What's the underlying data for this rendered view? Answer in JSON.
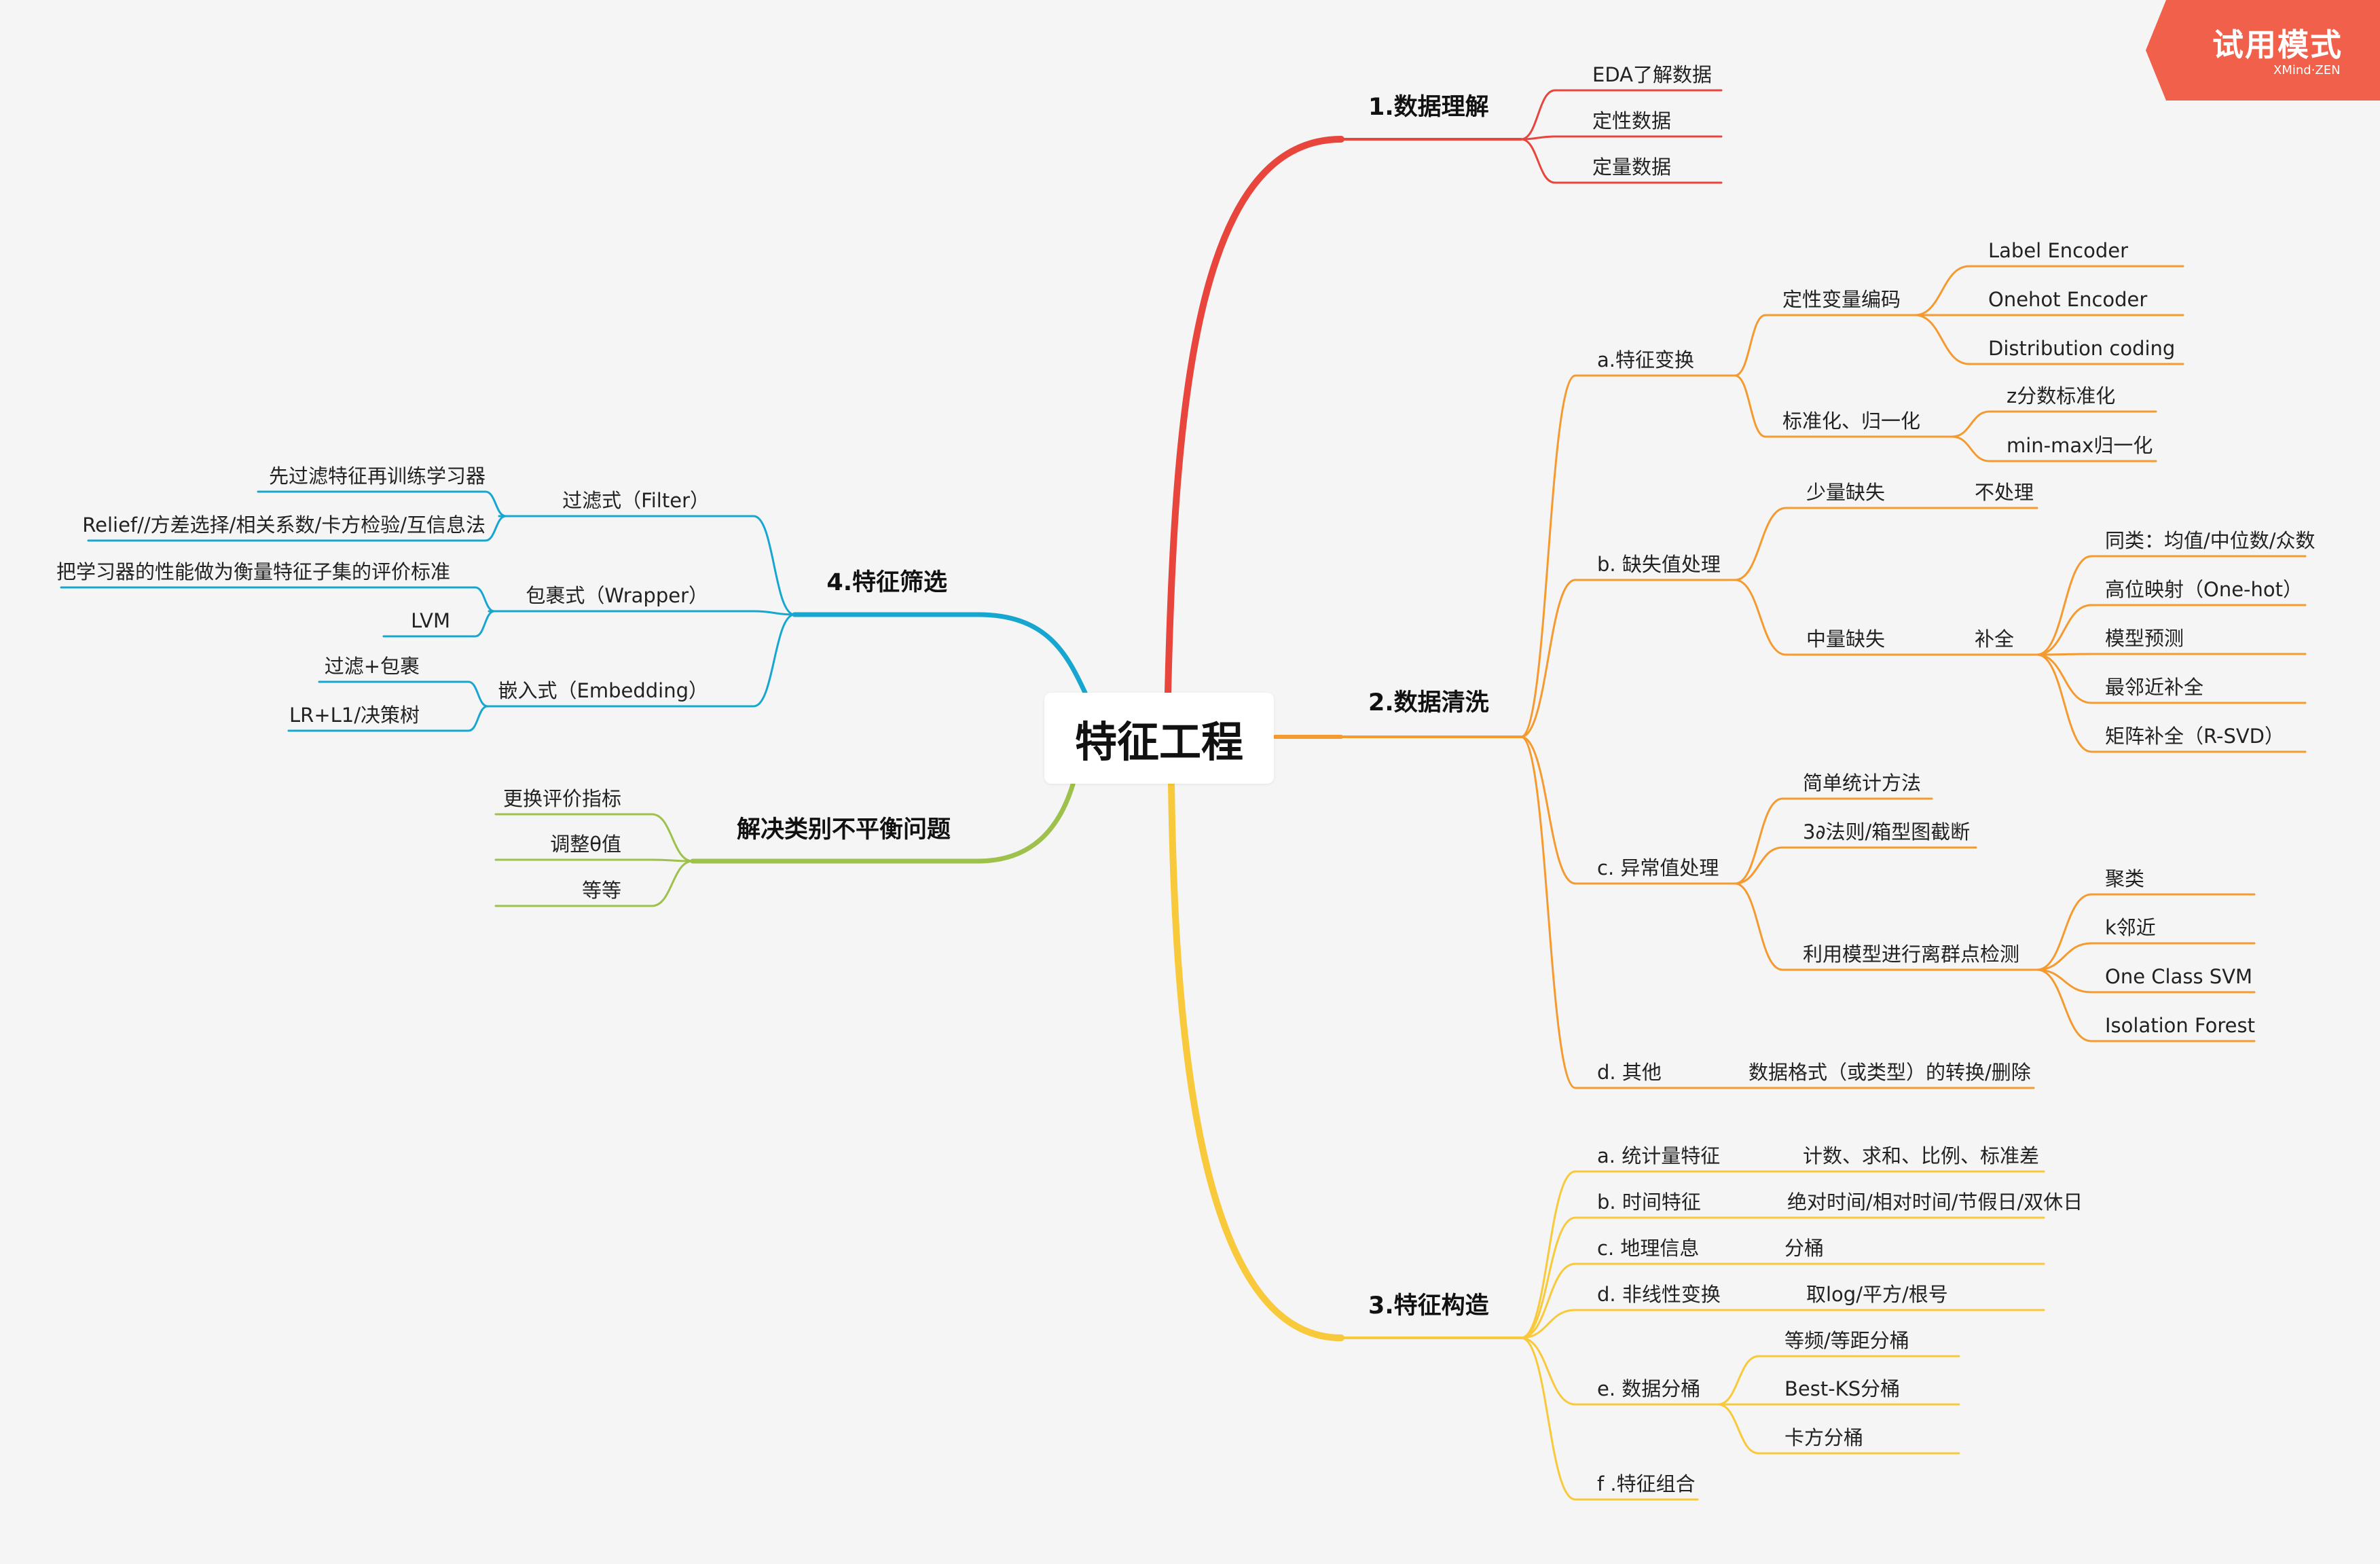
{
  "trial": {
    "label": "试用模式",
    "brand": "XMind·ZEN",
    "color": "#f0604a"
  },
  "colors": {
    "red": "#e8453c",
    "orange": "#f59a2f",
    "yellow": "#f8c93a",
    "green": "#9dc14b",
    "blue": "#17a6cf"
  },
  "root": "特征工程",
  "branches": [
    {
      "label": "1.数据理解",
      "children": [
        "EDA了解数据",
        "定性数据",
        "定量数据"
      ]
    },
    {
      "label": "2.数据清洗",
      "a": {
        "label": "a.特征变换",
        "g1": {
          "label": "定性变量编码",
          "items": [
            "Label Encoder",
            "Onehot Encoder",
            "Distribution coding"
          ]
        },
        "g2": {
          "label": "标准化、归一化",
          "items": [
            "z分数标准化",
            "min-max归一化"
          ]
        }
      },
      "b": {
        "label": "b. 缺失值处理",
        "g1": {
          "label": "少量缺失",
          "action": "不处理"
        },
        "g2": {
          "label": "中量缺失",
          "action": "补全",
          "items": [
            "同类：均值/中位数/众数",
            "高位映射（One-hot）",
            "模型预测",
            "最邻近补全",
            "矩阵补全（R-SVD）"
          ]
        }
      },
      "c": {
        "label": "c. 异常值处理",
        "items": [
          "简单统计方法",
          "3∂法则/箱型图截断"
        ],
        "g": {
          "label": "利用模型进行离群点检测",
          "items": [
            "聚类",
            "k邻近",
            "One Class SVM",
            "Isolation Forest"
          ]
        }
      },
      "d": {
        "label": "d. 其他",
        "value": "数据格式（或类型）的转换/删除"
      }
    },
    {
      "label": "3.特征构造",
      "rows": [
        {
          "label": "a. 统计量特征",
          "value": "计数、求和、比例、标准差"
        },
        {
          "label": "b. 时间特征",
          "value": "绝对时间/相对时间/节假日/双休日"
        },
        {
          "label": "c. 地理信息",
          "value": "分桶"
        },
        {
          "label": "d. 非线性变换",
          "value": "取log/平方/根号"
        }
      ],
      "e": {
        "label": "e. 数据分桶",
        "items": [
          "等频/等距分桶",
          "Best-KS分桶",
          "卡方分桶"
        ]
      },
      "f": {
        "label": "f .特征组合"
      }
    },
    {
      "label": "4.特征筛选",
      "groups": [
        {
          "label": "过滤式（Filter）",
          "items": [
            "先过滤特征再训练学习器",
            "Relief//方差选择/相关系数/卡方检验/互信息法"
          ]
        },
        {
          "label": "包裹式（Wrapper）",
          "items": [
            "把学习器的性能做为衡量特征子集的评价标准",
            "LVM"
          ]
        },
        {
          "label": "嵌入式（Embedding）",
          "items": [
            "过滤+包裹",
            "LR+L1/决策树"
          ]
        }
      ]
    },
    {
      "label": "解决类别不平衡问题",
      "children": [
        "更换评价指标",
        "调整θ值",
        "等等"
      ]
    }
  ]
}
